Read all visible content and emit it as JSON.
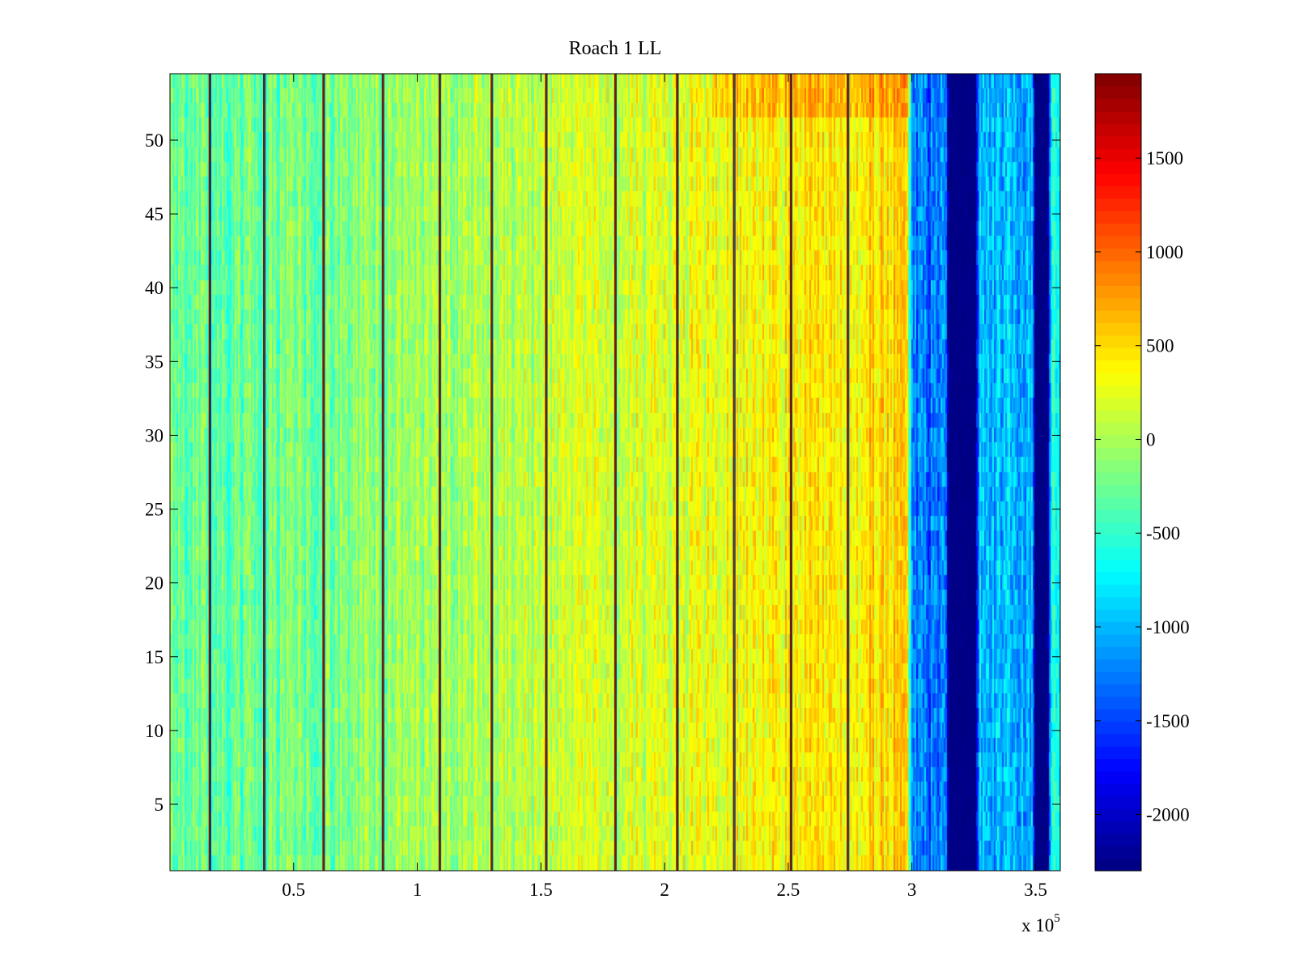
{
  "chart_data": {
    "type": "heatmap",
    "title": "Roach 1 LL",
    "xlabel": "",
    "ylabel": "",
    "x_multiplier_label": "x 10",
    "x_multiplier_exponent": "5",
    "xlim": [
      0,
      3.6
    ],
    "ylim": [
      0.5,
      54.5
    ],
    "x_ticks": [
      0.5,
      1,
      1.5,
      2,
      2.5,
      3,
      3.5
    ],
    "x_tick_labels": [
      "0.5",
      "1",
      "1.5",
      "2",
      "2.5",
      "3",
      "3.5"
    ],
    "y_ticks": [
      5,
      10,
      15,
      20,
      25,
      30,
      35,
      40,
      45,
      50
    ],
    "y_tick_labels": [
      "5",
      "10",
      "15",
      "20",
      "25",
      "30",
      "35",
      "40",
      "45",
      "50"
    ],
    "colorbar": {
      "colormap": "jet",
      "clim": [
        -2300,
        1950
      ],
      "ticks": [
        -2000,
        -1500,
        -1000,
        -500,
        0,
        500,
        1000,
        1500
      ],
      "tick_labels": [
        "-2000",
        "-1500",
        "-1000",
        "-500",
        "0",
        "500",
        "1000",
        "1500"
      ]
    },
    "rows": 54,
    "vertical_high_lines_x": [
      0.16,
      0.38,
      0.62,
      0.86,
      1.09,
      1.3,
      1.52,
      1.8,
      2.05,
      2.28,
      2.51,
      2.74
    ],
    "column_trend": [
      {
        "x": 0.0,
        "mean": -300
      },
      {
        "x": 0.3,
        "mean": -280
      },
      {
        "x": 0.6,
        "mean": -200
      },
      {
        "x": 1.0,
        "mean": -50
      },
      {
        "x": 1.4,
        "mean": 80
      },
      {
        "x": 1.8,
        "mean": 160
      },
      {
        "x": 2.2,
        "mean": 280
      },
      {
        "x": 2.6,
        "mean": 420
      },
      {
        "x": 2.98,
        "mean": 520
      },
      {
        "x": 3.0,
        "mean": -1300
      },
      {
        "x": 3.14,
        "mean": -1300
      },
      {
        "x": 3.15,
        "mean": -2300
      },
      {
        "x": 3.26,
        "mean": -2300
      },
      {
        "x": 3.27,
        "mean": -1000
      },
      {
        "x": 3.49,
        "mean": -1000
      },
      {
        "x": 3.5,
        "mean": -2300
      },
      {
        "x": 3.55,
        "mean": -2300
      },
      {
        "x": 3.56,
        "mean": -700
      },
      {
        "x": 3.6,
        "mean": -700
      }
    ]
  }
}
